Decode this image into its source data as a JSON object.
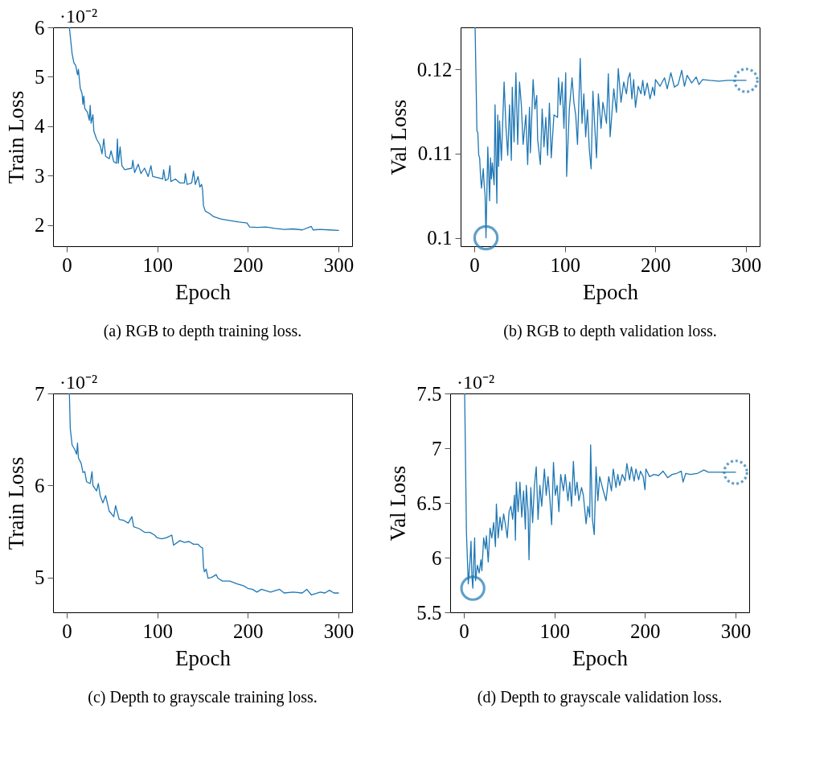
{
  "chart_data": [
    {
      "type": "line",
      "xlabel": "Epoch",
      "ylabel": "Train Loss",
      "annotations": [
        "·10⁻²",
        "(a) RGB to depth training loss."
      ],
      "xlim": [
        -15,
        315
      ],
      "xticks": [
        0,
        100,
        200,
        300
      ],
      "ylim": [
        1.57,
        6
      ],
      "yticks": [
        2,
        3,
        4,
        5,
        6
      ],
      "series": [
        {
          "color": "#1f77b4",
          "x": [
            3,
            6,
            8,
            10,
            12,
            13,
            15,
            17,
            18,
            19,
            20,
            23,
            25,
            26,
            27,
            29,
            30,
            33,
            37,
            39,
            41,
            43,
            47,
            49,
            52,
            55,
            56,
            57,
            59,
            61,
            64,
            72,
            73,
            75,
            79,
            82,
            86,
            90,
            93,
            95,
            100,
            106,
            107,
            109,
            112,
            114,
            115,
            120,
            125,
            130,
            131,
            133,
            138,
            140,
            142,
            145,
            147,
            149,
            150,
            151,
            153,
            158,
            162,
            170,
            180,
            190,
            199,
            202,
            210,
            220,
            230,
            240,
            250,
            260,
            270,
            272,
            280,
            290,
            300
          ],
          "values": [
            6.0,
            5.47,
            5.28,
            5.23,
            5.04,
            5.15,
            4.77,
            4.66,
            4.44,
            4.61,
            4.36,
            4.28,
            4.12,
            4.42,
            4.06,
            4.23,
            3.9,
            3.74,
            3.61,
            3.44,
            3.74,
            3.39,
            3.34,
            3.5,
            3.28,
            3.25,
            3.74,
            3.25,
            3.58,
            3.2,
            3.12,
            3.15,
            3.31,
            3.06,
            3.23,
            3.04,
            3.15,
            2.98,
            3.2,
            2.98,
            2.96,
            2.93,
            3.12,
            2.9,
            2.93,
            3.2,
            2.88,
            2.93,
            2.85,
            2.85,
            3.04,
            2.82,
            2.85,
            3.09,
            2.82,
            2.98,
            2.77,
            2.82,
            2.71,
            2.39,
            2.28,
            2.23,
            2.17,
            2.12,
            2.09,
            2.06,
            2.04,
            1.96,
            1.95,
            1.96,
            1.93,
            1.91,
            1.92,
            1.9,
            1.97,
            1.9,
            1.91,
            1.9,
            1.89
          ]
        }
      ]
    },
    {
      "type": "line",
      "xlabel": "Epoch",
      "ylabel": "Val Loss",
      "annotations": [
        "(b) RGB to depth validation loss."
      ],
      "xlim": [
        -15,
        315
      ],
      "xticks": [
        0,
        100,
        200,
        300
      ],
      "ylim": [
        0.099,
        0.125
      ],
      "yticks": [
        0.1,
        0.11,
        0.12
      ],
      "series": [
        {
          "color": "#1f77b4",
          "x": [
            1,
            3,
            4,
            5,
            6,
            7,
            8,
            10,
            11,
            12,
            13,
            15,
            17,
            18,
            19,
            20,
            22,
            23,
            25,
            26,
            27,
            28,
            30,
            33,
            35,
            37,
            39,
            41,
            42,
            44,
            46,
            48,
            50,
            52,
            54,
            57,
            59,
            61,
            62,
            65,
            67,
            69,
            70,
            73,
            75,
            77,
            79,
            81,
            83,
            85,
            88,
            92,
            93,
            95,
            97,
            99,
            101,
            102,
            105,
            108,
            110,
            112,
            114,
            117,
            119,
            121,
            123,
            125,
            127,
            129,
            131,
            133,
            135,
            137,
            140,
            142,
            146,
            148,
            150,
            154,
            157,
            159,
            162,
            165,
            168,
            170,
            172,
            174,
            176,
            178,
            181,
            184,
            186,
            188,
            191,
            194,
            197,
            199,
            200,
            205,
            210,
            213,
            217,
            221,
            225,
            229,
            232,
            235,
            240,
            245,
            248,
            252,
            260,
            270,
            280,
            290,
            300
          ],
          "values": [
            0.125,
            0.1127,
            0.1125,
            0.1098,
            0.1095,
            0.1073,
            0.1059,
            0.1082,
            0.1063,
            0.1051,
            0.1,
            0.1108,
            0.1044,
            0.1095,
            0.107,
            0.1089,
            0.1063,
            0.1158,
            0.1041,
            0.1146,
            0.1085,
            0.1139,
            0.1092,
            0.1185,
            0.1133,
            0.1098,
            0.1158,
            0.1092,
            0.1179,
            0.1114,
            0.1196,
            0.1111,
            0.1185,
            0.1158,
            0.1111,
            0.1146,
            0.1087,
            0.1155,
            0.1101,
            0.1188,
            0.1153,
            0.1169,
            0.1117,
            0.1087,
            0.1153,
            0.1108,
            0.1143,
            0.1098,
            0.116,
            0.1095,
            0.1146,
            0.1143,
            0.119,
            0.1158,
            0.1185,
            0.113,
            0.1196,
            0.1073,
            0.1153,
            0.119,
            0.1161,
            0.1146,
            0.1111,
            0.1213,
            0.1136,
            0.1171,
            0.112,
            0.1152,
            0.1106,
            0.1082,
            0.1174,
            0.1133,
            0.1095,
            0.1171,
            0.113,
            0.1161,
            0.1136,
            0.1195,
            0.112,
            0.1177,
            0.1149,
            0.1201,
            0.1161,
            0.1185,
            0.1171,
            0.119,
            0.1196,
            0.1165,
            0.1188,
            0.1155,
            0.118,
            0.1171,
            0.1187,
            0.1169,
            0.1184,
            0.1165,
            0.1179,
            0.1169,
            0.1188,
            0.118,
            0.119,
            0.1177,
            0.1196,
            0.1179,
            0.1182,
            0.1199,
            0.118,
            0.1193,
            0.1184,
            0.1191,
            0.1182,
            0.1188,
            0.1187,
            0.1186,
            0.1187,
            0.1187,
            0.1187
          ]
        },
        {
          "type": "scatter",
          "color": "#1f77b4",
          "marker": "circle",
          "x": [
            13
          ],
          "values": [
            0.1
          ]
        },
        {
          "type": "scatter",
          "color": "#1f77b4",
          "marker": "circle",
          "line_style": "dotted",
          "x": [
            300
          ],
          "values": [
            0.1187
          ]
        }
      ]
    },
    {
      "type": "line",
      "xlabel": "Epoch",
      "ylabel": "Train Loss",
      "annotations": [
        "·10⁻²",
        "(c) Depth to grayscale training loss."
      ],
      "xlim": [
        -15,
        315
      ],
      "xticks": [
        0,
        100,
        200,
        300
      ],
      "ylim": [
        4.62,
        7
      ],
      "yticks": [
        5,
        6,
        7
      ],
      "series": [
        {
          "color": "#1f77b4",
          "x": [
            3,
            4,
            6,
            9,
            11,
            12,
            13,
            16,
            18,
            20,
            22,
            26,
            28,
            29,
            33,
            35,
            37,
            40,
            43,
            47,
            52,
            54,
            58,
            63,
            68,
            72,
            74,
            80,
            86,
            92,
            97,
            100,
            105,
            110,
            116,
            118,
            125,
            130,
            135,
            140,
            145,
            148,
            150,
            151,
            152,
            154,
            156,
            160,
            165,
            167,
            172,
            180,
            188,
            195,
            200,
            205,
            210,
            215,
            225,
            235,
            240,
            250,
            260,
            265,
            270,
            280,
            285,
            290,
            295,
            300
          ],
          "values": [
            7.0,
            6.62,
            6.44,
            6.39,
            6.34,
            6.46,
            6.3,
            6.24,
            6.14,
            6.15,
            6.04,
            6.02,
            6.15,
            6.0,
            5.94,
            6.02,
            5.89,
            5.81,
            5.89,
            5.72,
            5.66,
            5.78,
            5.63,
            5.62,
            5.59,
            5.66,
            5.55,
            5.53,
            5.49,
            5.49,
            5.46,
            5.43,
            5.42,
            5.43,
            5.46,
            5.35,
            5.4,
            5.38,
            5.39,
            5.36,
            5.36,
            5.33,
            5.32,
            5.12,
            5.06,
            5.09,
            4.99,
            5.0,
            5.03,
            4.99,
            4.96,
            4.96,
            4.93,
            4.91,
            4.88,
            4.87,
            4.84,
            4.87,
            4.84,
            4.87,
            4.83,
            4.84,
            4.83,
            4.87,
            4.81,
            4.84,
            4.83,
            4.86,
            4.83,
            4.83
          ]
        }
      ]
    },
    {
      "type": "line",
      "xlabel": "Epoch",
      "ylabel": "Val Loss",
      "annotations": [
        "·10⁻²",
        "(d) Depth to grayscale validation loss."
      ],
      "xlim": [
        -15,
        315
      ],
      "xticks": [
        0,
        100,
        200,
        300
      ],
      "ylim": [
        5.5,
        7.5
      ],
      "yticks": [
        5.5,
        6,
        6.5,
        7,
        7.5
      ],
      "series": [
        {
          "color": "#1f77b4",
          "x": [
            1,
            3,
            5,
            7,
            8,
            9,
            10,
            12,
            13,
            15,
            17,
            19,
            20,
            22,
            24,
            25,
            27,
            29,
            31,
            33,
            35,
            36,
            38,
            40,
            42,
            44,
            46,
            48,
            50,
            52,
            54,
            56,
            57,
            58,
            60,
            62,
            64,
            66,
            68,
            69,
            71,
            72,
            74,
            76,
            78,
            80,
            82,
            84,
            86,
            89,
            91,
            93,
            95,
            97,
            99,
            101,
            103,
            105,
            107,
            110,
            112,
            115,
            117,
            119,
            121,
            123,
            125,
            127,
            130,
            132,
            135,
            137,
            139,
            140,
            142,
            144,
            146,
            148,
            150,
            153,
            157,
            160,
            163,
            165,
            168,
            170,
            172,
            175,
            178,
            180,
            183,
            185,
            188,
            190,
            193,
            195,
            198,
            200,
            201,
            205,
            210,
            215,
            220,
            225,
            230,
            235,
            240,
            242,
            245,
            250,
            258,
            265,
            270,
            280,
            290,
            300
          ],
          "values": [
            7.5,
            6.22,
            5.76,
            5.98,
            6.15,
            5.83,
            5.72,
            6.18,
            5.79,
            5.93,
            5.86,
            5.98,
            5.88,
            6.18,
            6.08,
            6.2,
            5.96,
            6.27,
            6.18,
            6.32,
            6.1,
            6.49,
            6.18,
            6.37,
            6.25,
            6.4,
            6.3,
            6.18,
            6.42,
            6.47,
            6.35,
            6.57,
            6.16,
            6.69,
            6.42,
            6.69,
            6.37,
            6.61,
            6.26,
            6.66,
            6.42,
            5.98,
            6.64,
            6.32,
            6.66,
            6.83,
            6.35,
            6.66,
            6.47,
            6.81,
            6.57,
            6.74,
            6.54,
            6.3,
            6.87,
            6.57,
            6.66,
            6.42,
            6.76,
            6.61,
            6.76,
            6.52,
            6.69,
            6.47,
            6.88,
            6.57,
            6.69,
            6.52,
            6.64,
            6.57,
            6.31,
            6.47,
            6.37,
            7.03,
            6.35,
            6.21,
            6.83,
            6.52,
            6.74,
            6.64,
            6.52,
            6.74,
            6.61,
            6.81,
            6.64,
            6.76,
            6.66,
            6.76,
            6.7,
            6.86,
            6.71,
            6.83,
            6.7,
            6.81,
            6.71,
            6.79,
            6.74,
            6.62,
            6.81,
            6.74,
            6.76,
            6.75,
            6.79,
            6.73,
            6.76,
            6.77,
            6.79,
            6.69,
            6.77,
            6.76,
            6.77,
            6.8,
            6.78,
            6.78,
            6.78,
            6.78
          ]
        },
        {
          "type": "scatter",
          "color": "#1f77b4",
          "marker": "circle",
          "x": [
            10
          ],
          "values": [
            5.72
          ]
        },
        {
          "type": "scatter",
          "color": "#1f77b4",
          "marker": "circle",
          "line_style": "dotted",
          "x": [
            300
          ],
          "values": [
            6.78
          ]
        }
      ]
    }
  ]
}
